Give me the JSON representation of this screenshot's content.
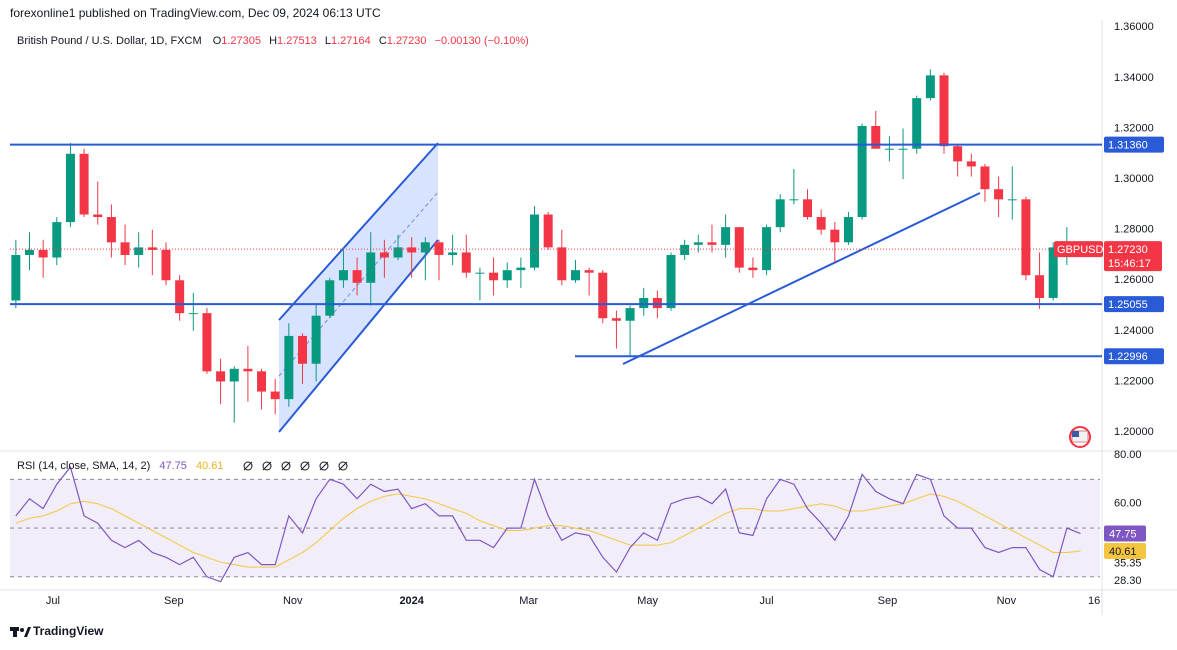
{
  "header": {
    "publisher": "forexonline1 published on TradingView.com, Dec 09, 2024 06:13 UTC",
    "footer": "TradingView"
  },
  "chart_data": [
    {
      "type": "candlestick",
      "title": "British Pound / U.S. Dollar, 1D, FXCM",
      "ohlc_legend": [
        {
          "label": "O",
          "value": "1.27305"
        },
        {
          "label": "H",
          "value": "1.27513"
        },
        {
          "label": "L",
          "value": "1.27164"
        },
        {
          "label": "C",
          "value": "1.27230"
        }
      ],
      "change": "−0.00130 (−0.10%)",
      "x": [
        "2023-06-12",
        "2023-06-19",
        "2023-06-26",
        "2023-07-03",
        "2023-07-10",
        "2023-07-17",
        "2023-07-24",
        "2023-07-31",
        "2023-08-07",
        "2023-08-14",
        "2023-08-21",
        "2023-08-28",
        "2023-09-04",
        "2023-09-11",
        "2023-09-18",
        "2023-09-25",
        "2023-10-02",
        "2023-10-09",
        "2023-10-16",
        "2023-10-23",
        "2023-10-30",
        "2023-11-06",
        "2023-11-13",
        "2023-11-20",
        "2023-11-27",
        "2023-12-04",
        "2023-12-11",
        "2023-12-18",
        "2023-12-25",
        "2024-01-01",
        "2024-01-08",
        "2024-01-15",
        "2024-01-22",
        "2024-01-29",
        "2024-02-05",
        "2024-02-12",
        "2024-02-19",
        "2024-02-26",
        "2024-03-04",
        "2024-03-11",
        "2024-03-18",
        "2024-03-25",
        "2024-04-01",
        "2024-04-08",
        "2024-04-15",
        "2024-04-22",
        "2024-04-29",
        "2024-05-06",
        "2024-05-13",
        "2024-05-20",
        "2024-05-27",
        "2024-06-03",
        "2024-06-10",
        "2024-06-17",
        "2024-06-24",
        "2024-07-01",
        "2024-07-08",
        "2024-07-15",
        "2024-07-22",
        "2024-07-29",
        "2024-08-05",
        "2024-08-12",
        "2024-08-19",
        "2024-08-26",
        "2024-09-02",
        "2024-09-09",
        "2024-09-16",
        "2024-09-23",
        "2024-09-30",
        "2024-10-07",
        "2024-10-14",
        "2024-10-21",
        "2024-10-28",
        "2024-11-04",
        "2024-11-11",
        "2024-11-18",
        "2024-11-25",
        "2024-12-02",
        "2024-12-09"
      ],
      "series": [
        {
          "name": "GBPUSD",
          "up_color": "#089981",
          "down_color": "#f23645",
          "open": [
            1.252,
            1.27,
            1.272,
            1.269,
            1.283,
            1.31,
            1.286,
            1.285,
            1.275,
            1.27,
            1.273,
            1.272,
            1.26,
            1.247,
            1.247,
            1.224,
            1.22,
            1.225,
            1.224,
            1.216,
            1.213,
            1.238,
            1.227,
            1.246,
            1.26,
            1.264,
            1.259,
            1.271,
            1.269,
            1.273,
            1.271,
            1.275,
            1.27,
            1.271,
            1.263,
            1.263,
            1.26,
            1.264,
            1.265,
            1.286,
            1.273,
            1.26,
            1.264,
            1.263,
            1.245,
            1.244,
            1.249,
            1.253,
            1.249,
            1.27,
            1.274,
            1.275,
            1.274,
            1.281,
            1.265,
            1.264,
            1.281,
            1.292,
            1.292,
            1.285,
            1.28,
            1.275,
            1.285,
            1.321,
            1.312,
            1.312,
            1.312,
            1.332,
            1.341,
            1.313,
            1.307,
            1.305,
            1.296,
            1.292,
            1.292,
            1.262,
            1.253,
            1.273,
            1.27305
          ],
          "high": [
            1.276,
            1.279,
            1.276,
            1.285,
            1.3143,
            1.312,
            1.299,
            1.29,
            1.282,
            1.279,
            1.28,
            1.275,
            1.262,
            1.255,
            1.249,
            1.229,
            1.226,
            1.234,
            1.225,
            1.221,
            1.243,
            1.239,
            1.251,
            1.261,
            1.273,
            1.269,
            1.279,
            1.276,
            1.278,
            1.277,
            1.277,
            1.276,
            1.278,
            1.278,
            1.265,
            1.269,
            1.267,
            1.269,
            1.2893,
            1.287,
            1.28,
            1.268,
            1.265,
            1.264,
            1.248,
            1.25,
            1.257,
            1.256,
            1.271,
            1.276,
            1.278,
            1.282,
            1.286,
            1.281,
            1.269,
            1.282,
            1.294,
            1.304,
            1.296,
            1.288,
            1.283,
            1.287,
            1.322,
            1.327,
            1.317,
            1.32,
            1.333,
            1.3434,
            1.342,
            1.314,
            1.31,
            1.306,
            1.301,
            1.305,
            1.293,
            1.271,
            1.275,
            1.281,
            1.27513
          ],
          "low": [
            1.249,
            1.264,
            1.261,
            1.266,
            1.281,
            1.285,
            1.282,
            1.269,
            1.266,
            1.265,
            1.262,
            1.258,
            1.244,
            1.24,
            1.223,
            1.211,
            1.2037,
            1.212,
            1.209,
            1.207,
            1.21,
            1.219,
            1.22,
            1.245,
            1.257,
            1.254,
            1.25,
            1.261,
            1.268,
            1.261,
            1.26,
            1.26,
            1.266,
            1.261,
            1.252,
            1.254,
            1.257,
            1.257,
            1.264,
            1.272,
            1.258,
            1.259,
            1.254,
            1.243,
            1.233,
            1.23,
            1.246,
            1.245,
            1.248,
            1.268,
            1.271,
            1.271,
            1.269,
            1.263,
            1.261,
            1.262,
            1.279,
            1.29,
            1.284,
            1.278,
            1.267,
            1.274,
            1.284,
            1.312,
            1.307,
            1.3,
            1.31,
            1.331,
            1.31,
            1.301,
            1.301,
            1.291,
            1.285,
            1.284,
            1.26,
            1.2487,
            1.252,
            1.266,
            1.27164
          ],
          "close": [
            1.27,
            1.272,
            1.269,
            1.283,
            1.31,
            1.286,
            1.285,
            1.275,
            1.27,
            1.273,
            1.272,
            1.26,
            1.247,
            1.247,
            1.224,
            1.22,
            1.225,
            1.224,
            1.216,
            1.213,
            1.238,
            1.227,
            1.246,
            1.26,
            1.264,
            1.259,
            1.271,
            1.269,
            1.273,
            1.271,
            1.275,
            1.27,
            1.271,
            1.263,
            1.263,
            1.26,
            1.264,
            1.265,
            1.286,
            1.273,
            1.26,
            1.264,
            1.263,
            1.245,
            1.244,
            1.249,
            1.253,
            1.249,
            1.27,
            1.274,
            1.275,
            1.274,
            1.281,
            1.265,
            1.264,
            1.281,
            1.292,
            1.292,
            1.285,
            1.28,
            1.275,
            1.285,
            1.321,
            1.312,
            1.312,
            1.312,
            1.332,
            1.341,
            1.313,
            1.307,
            1.305,
            1.296,
            1.292,
            1.292,
            1.262,
            1.253,
            1.273,
            1.274,
            1.2723
          ]
        }
      ],
      "last_price": {
        "value": 1.2723,
        "label": "1.27230",
        "color": "#f23645"
      },
      "countdown": "15:46:17",
      "levels": [
        {
          "value": 1.3136,
          "label": "1.31360"
        },
        {
          "value": 1.25055,
          "label": "1.25055"
        },
        {
          "value": 1.22996,
          "label": "1.22996"
        }
      ],
      "level_color": "#2a5bd7",
      "xlim": [
        "2023-06-09",
        "2024-12-19"
      ],
      "xticks": [
        {
          "value": "2023-07-01",
          "label": "Jul"
        },
        {
          "value": "2023-09-01",
          "label": "Sep"
        },
        {
          "value": "2023-11-01",
          "label": "Nov"
        },
        {
          "value": "2024-01-01",
          "label": "2024"
        },
        {
          "value": "2024-03-01",
          "label": "Mar"
        },
        {
          "value": "2024-05-01",
          "label": "May"
        },
        {
          "value": "2024-07-01",
          "label": "Jul"
        },
        {
          "value": "2024-09-01",
          "label": "Sep"
        },
        {
          "value": "2024-11-01",
          "label": "Nov"
        },
        {
          "value": "2024-12-16",
          "label": "16"
        }
      ],
      "ylim": [
        1.1929,
        1.3621
      ],
      "yticks": [
        {
          "value": 1.2,
          "label": "1.20000"
        },
        {
          "value": 1.22,
          "label": "1.22000"
        },
        {
          "value": 1.24,
          "label": "1.24000"
        },
        {
          "value": 1.26,
          "label": "1.26000"
        },
        {
          "value": 1.28,
          "label": "1.28000"
        },
        {
          "value": 1.3,
          "label": "1.30000"
        },
        {
          "value": 1.32,
          "label": "1.32000"
        },
        {
          "value": 1.34,
          "label": "1.34000"
        },
        {
          "value": 1.36,
          "label": "1.36000"
        }
      ],
      "grid": false
    },
    {
      "type": "line",
      "title": "RSI (14, close, SMA, 14, 2)",
      "x": [
        "2023-06-12",
        "2023-06-19",
        "2023-06-26",
        "2023-07-03",
        "2023-07-10",
        "2023-07-17",
        "2023-07-24",
        "2023-07-31",
        "2023-08-07",
        "2023-08-14",
        "2023-08-21",
        "2023-08-28",
        "2023-09-04",
        "2023-09-11",
        "2023-09-18",
        "2023-09-25",
        "2023-10-02",
        "2023-10-09",
        "2023-10-16",
        "2023-10-23",
        "2023-10-30",
        "2023-11-06",
        "2023-11-13",
        "2023-11-20",
        "2023-11-27",
        "2023-12-04",
        "2023-12-11",
        "2023-12-18",
        "2023-12-25",
        "2024-01-01",
        "2024-01-08",
        "2024-01-15",
        "2024-01-22",
        "2024-01-29",
        "2024-02-05",
        "2024-02-12",
        "2024-02-19",
        "2024-02-26",
        "2024-03-04",
        "2024-03-11",
        "2024-03-18",
        "2024-03-25",
        "2024-04-01",
        "2024-04-08",
        "2024-04-15",
        "2024-04-22",
        "2024-04-29",
        "2024-05-06",
        "2024-05-13",
        "2024-05-20",
        "2024-05-27",
        "2024-06-03",
        "2024-06-10",
        "2024-06-17",
        "2024-06-24",
        "2024-07-01",
        "2024-07-08",
        "2024-07-15",
        "2024-07-22",
        "2024-07-29",
        "2024-08-05",
        "2024-08-12",
        "2024-08-19",
        "2024-08-26",
        "2024-09-02",
        "2024-09-09",
        "2024-09-16",
        "2024-09-23",
        "2024-09-30",
        "2024-10-07",
        "2024-10-14",
        "2024-10-21",
        "2024-10-28",
        "2024-11-04",
        "2024-11-11",
        "2024-11-18",
        "2024-11-25",
        "2024-12-02",
        "2024-12-09"
      ],
      "series": [
        {
          "name": "RSI",
          "color": "#7e57c2",
          "values": [
            55,
            62,
            58,
            68,
            75,
            55,
            52,
            45,
            42,
            45,
            40,
            38,
            35,
            38,
            30,
            28,
            38,
            40,
            35,
            35,
            55,
            48,
            62,
            70,
            68,
            62,
            68,
            65,
            66,
            58,
            60,
            55,
            55,
            45,
            45,
            42,
            50,
            50,
            70,
            55,
            45,
            48,
            47,
            38,
            32,
            42,
            48,
            45,
            60,
            62,
            63,
            60,
            66,
            48,
            47,
            62,
            70,
            68,
            58,
            52,
            45,
            55,
            72,
            65,
            62,
            60,
            72,
            70,
            55,
            50,
            50,
            42,
            40,
            42,
            42,
            33,
            30,
            50,
            47.75
          ]
        },
        {
          "name": "SMA",
          "color": "#f5c542",
          "values": [
            52,
            54,
            55,
            57,
            60,
            61,
            60,
            58,
            55,
            52,
            49,
            46,
            43,
            40,
            38,
            36,
            35,
            34,
            34,
            34,
            37,
            40,
            44,
            49,
            54,
            58,
            61,
            63,
            64,
            63,
            62,
            60,
            58,
            56,
            53,
            51,
            49,
            49,
            50,
            51,
            51,
            50,
            49,
            47,
            45,
            43,
            43,
            43,
            44,
            47,
            50,
            53,
            56,
            58,
            58,
            57,
            57,
            58,
            59,
            60,
            59,
            57,
            57,
            58,
            59,
            60,
            62,
            64,
            63,
            61,
            58,
            55,
            52,
            49,
            46,
            43,
            40,
            40,
            40.61
          ]
        }
      ],
      "bands": [
        70,
        50,
        30
      ],
      "band_fill": "rgba(126,87,194,0.1)",
      "xlim": [
        "2023-06-09",
        "2024-12-19"
      ],
      "ylim": [
        24.6,
        81.2
      ],
      "yticks": [
        {
          "value": 80,
          "label": "80.00"
        },
        {
          "value": 60,
          "label": "60.00"
        },
        35.35,
        {
          "value": 28.3,
          "label": "28.30"
        }
      ],
      "grid": false
    }
  ]
}
